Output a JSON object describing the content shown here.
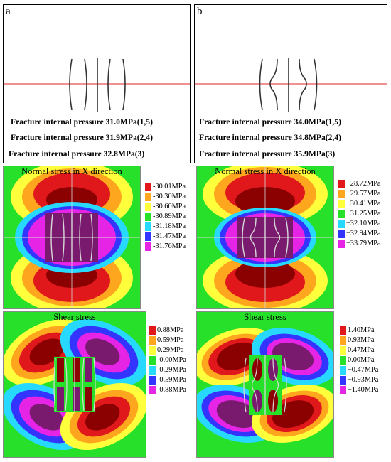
{
  "panels": [
    {
      "letter": "a",
      "pressures": [
        "Fracture internal pressure 31.0MPa(1,5)",
        "Fracture internal pressure 31.9MPa(2,4)",
        "Fracture internal pressure 32.8MPa(3)"
      ],
      "normal_title": "Normal stress in X direction",
      "normal_legend": [
        "-30.01MPa",
        "-30.30MPa",
        "-30.60MPa",
        "-30.89MPa",
        "-31.18MPa",
        "-31.47MPa",
        "-31.76MPa"
      ],
      "shear_title": "Shear stress",
      "shear_legend": [
        "0.88MPa",
        "0.59MPa",
        "0.29MPa",
        "-0.00MPa",
        "-0.29MPa",
        "-0.59MPa",
        "-0.88MPa"
      ]
    },
    {
      "letter": "b",
      "pressures": [
        "Fracture internal pressure 34.0MPa(1,5)",
        "Fracture internal pressure 34.8MPa(2,4)",
        "Fracture internal pressure 35.9MPa(3)"
      ],
      "normal_title": "Normal stress in X direction",
      "normal_legend": [
        "−28.72MPa",
        "−29.57MPa",
        "−30.41MPa",
        "−31.25MPa",
        "−32.10MPa",
        "−32.94MPa",
        "−33.79MPa"
      ],
      "shear_title": "Shear stress",
      "shear_legend": [
        "1.40MPa",
        "0.93MPa",
        "0.47MPa",
        "0.00MPa",
        "−0.47MPa",
        "−0.93MPa",
        "−1.40MPa"
      ]
    }
  ],
  "colors": {
    "legend": [
      "#e0171b",
      "#ffa61f",
      "#ffff3c",
      "#27e02a",
      "#27d9ff",
      "#3434ff",
      "#e624e6"
    ],
    "midline": "#e02020",
    "crack": "#333333"
  }
}
